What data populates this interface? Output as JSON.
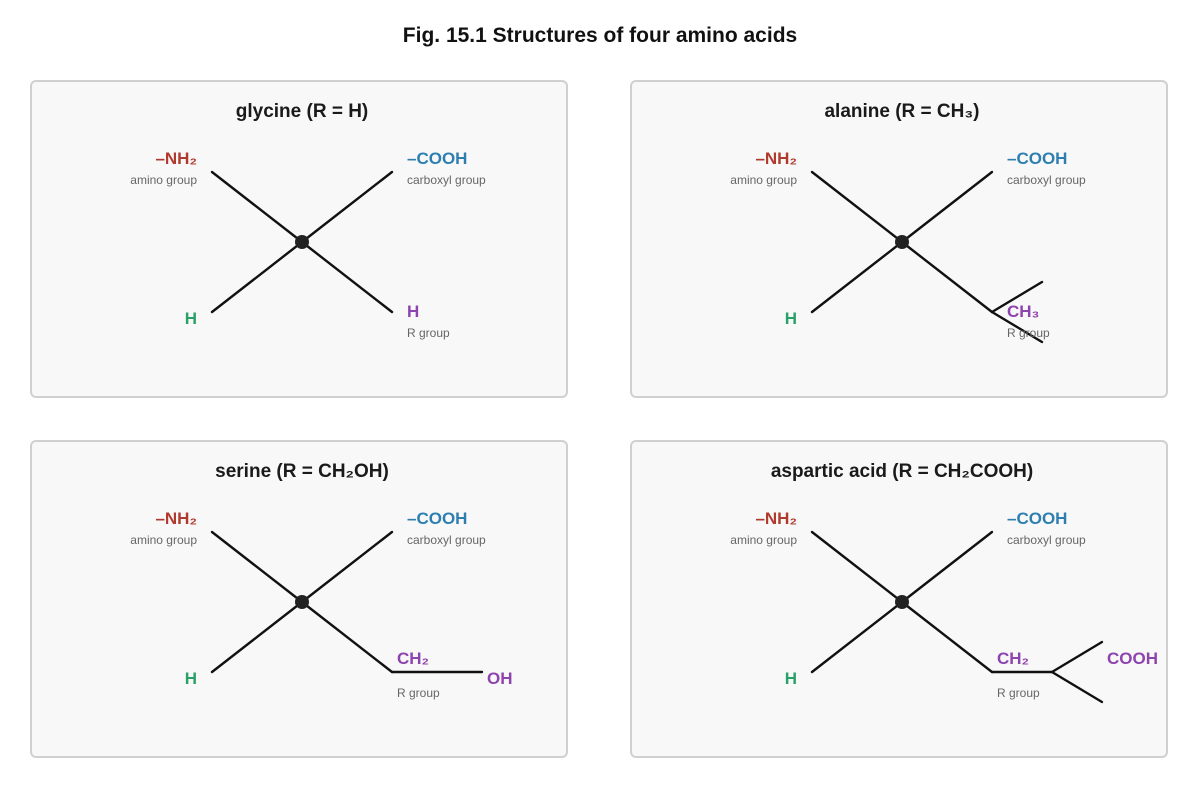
{
  "figure": {
    "title": "Fig. 15.1 Structures of four amino acids"
  },
  "colors": {
    "amino": "#b03a2e",
    "carboxyl": "#2e7fb0",
    "hydrogen": "#27a168",
    "r_group": "#8e44ad",
    "bond": "#111111"
  },
  "common": {
    "amino_label": "–NH₂",
    "amino_caption": "amino group",
    "carboxyl_label": "–COOH",
    "carboxyl_caption": "carboxyl group",
    "hydrogen_label": "H",
    "r_caption": "R group"
  },
  "panels": [
    {
      "id": "glycine",
      "title": "glycine (R = H)",
      "r_parts": [
        "H"
      ]
    },
    {
      "id": "alanine",
      "title": "alanine (R = CH₃)",
      "r_parts": [
        "CH₃"
      ]
    },
    {
      "id": "serine",
      "title": "serine (R = CH₂OH)",
      "r_parts": [
        "CH₂",
        "OH"
      ]
    },
    {
      "id": "aspartic",
      "title": "aspartic acid (R = CH₂COOH)",
      "r_parts": [
        "CH₂",
        "COOH"
      ]
    }
  ]
}
